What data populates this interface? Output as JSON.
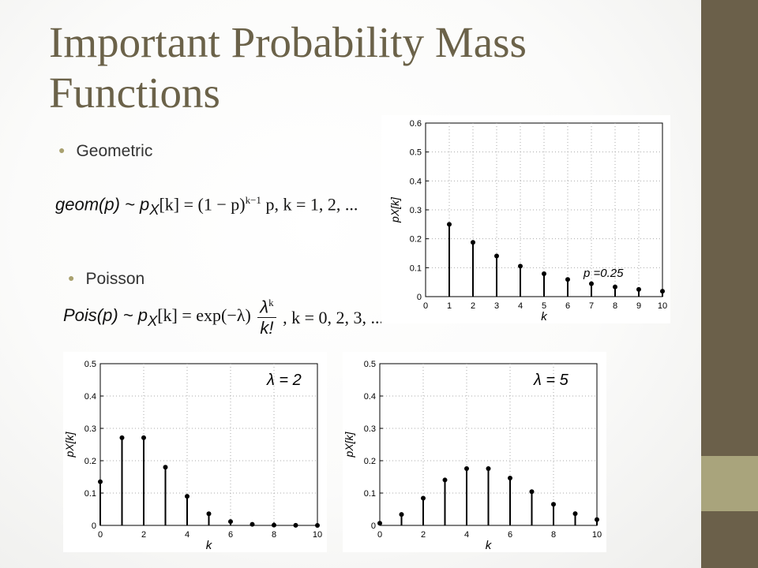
{
  "slide": {
    "title": "Important Probability Mass Functions",
    "accent_color": "#6b604a",
    "bullets": [
      {
        "label": "Geometric"
      },
      {
        "label": "Poisson"
      }
    ]
  },
  "formulas": {
    "geometric": {
      "lhs": "geom(p) ~ p",
      "sub": "X",
      "rhs": "[k] = (1 − p)",
      "sup": "k−1",
      "tail": " p, k = 1, 2, ..."
    },
    "poisson": {
      "lhs": "Pois(p) ~ p",
      "sub": "X",
      "mid": "[k] = exp(−λ)",
      "num": "λ",
      "num_sup": "k",
      "den": "k!",
      "tail": ", k = 0, 2, 3, ..."
    }
  },
  "chart_data": [
    {
      "type": "stem",
      "x": [
        1,
        2,
        3,
        4,
        5,
        6,
        7,
        8,
        9,
        10
      ],
      "values": [
        0.25,
        0.1875,
        0.1406,
        0.1055,
        0.0791,
        0.0593,
        0.0445,
        0.0334,
        0.025,
        0.0188
      ],
      "xlim": [
        0,
        10
      ],
      "ylim": [
        0,
        0.6
      ],
      "xticks": [
        "0",
        "1",
        "2",
        "3",
        "4",
        "5",
        "6",
        "7",
        "8",
        "9",
        "10"
      ],
      "yticks": [
        "0",
        "0.1",
        "0.2",
        "0.3",
        "0.4",
        "0.5",
        "0.6"
      ],
      "xlabel": "k",
      "ylabel": "pX[k]",
      "annotation": "p =0.25",
      "grid": true
    },
    {
      "type": "stem",
      "x": [
        0,
        1,
        2,
        3,
        4,
        5,
        6,
        7,
        8,
        9,
        10
      ],
      "values": [
        0.135,
        0.271,
        0.271,
        0.18,
        0.09,
        0.036,
        0.012,
        0.0034,
        0.0009,
        0.0002,
        0.0
      ],
      "xlim": [
        0,
        10
      ],
      "ylim": [
        0,
        0.5
      ],
      "xticks": [
        "0",
        "2",
        "4",
        "6",
        "8",
        "10"
      ],
      "yticks": [
        "0",
        "0.1",
        "0.2",
        "0.3",
        "0.4",
        "0.5"
      ],
      "xlabel": "k",
      "ylabel": "pX[k]",
      "annotation": "λ = 2",
      "grid": true
    },
    {
      "type": "stem",
      "x": [
        0,
        1,
        2,
        3,
        4,
        5,
        6,
        7,
        8,
        9,
        10
      ],
      "values": [
        0.0067,
        0.0337,
        0.0842,
        0.1404,
        0.1755,
        0.1755,
        0.1462,
        0.1044,
        0.0653,
        0.0363,
        0.0181
      ],
      "xlim": [
        0,
        10
      ],
      "ylim": [
        0,
        0.5
      ],
      "xticks": [
        "0",
        "2",
        "4",
        "6",
        "8",
        "10"
      ],
      "yticks": [
        "0",
        "0.1",
        "0.2",
        "0.3",
        "0.4",
        "0.5"
      ],
      "xlabel": "k",
      "ylabel": "pX[k]",
      "annotation": "λ = 5",
      "grid": true
    }
  ]
}
